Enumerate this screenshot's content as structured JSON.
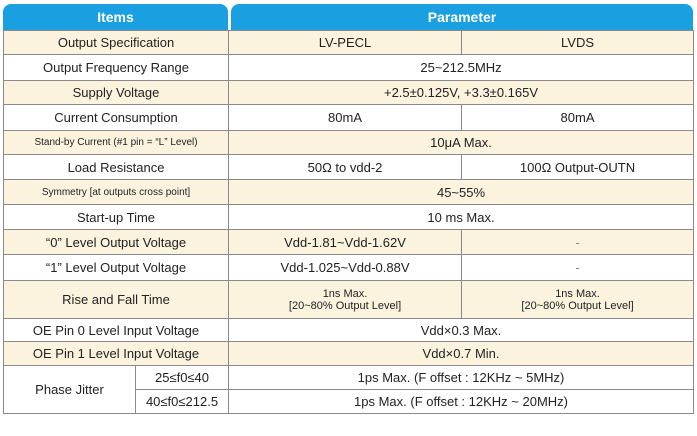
{
  "header": {
    "items": "Items",
    "parameter": "Parameter"
  },
  "rows": {
    "output_spec": {
      "label": "Output Specification",
      "a": "LV-PECL",
      "b": "LVDS"
    },
    "freq_range": {
      "label": "Output Frequency Range",
      "v": "25~212.5MHz"
    },
    "supply": {
      "label": "Supply Voltage",
      "v": "+2.5±0.125V, +3.3±0.165V"
    },
    "current": {
      "label": "Current Consumption",
      "a": "80mA",
      "b": "80mA"
    },
    "standby": {
      "label": "Stand-by Current (#1 pin = “L” Level)",
      "v": "10μA Max."
    },
    "load": {
      "label": "Load Resistance",
      "a": "50Ω to vdd-2",
      "b": "100Ω Output-OUTN"
    },
    "symmetry": {
      "label": "Symmetry [at outputs cross point]",
      "v": "45~55%"
    },
    "startup": {
      "label": "Start-up Time",
      "v": "10 ms Max."
    },
    "level0": {
      "label": "“0” Level Output Voltage",
      "a": "Vdd-1.81~Vdd-1.62V",
      "b": "-"
    },
    "level1": {
      "label": "“1” Level Output Voltage",
      "a": "Vdd-1.025~Vdd-0.88V",
      "b": "-"
    },
    "rise_fall": {
      "label": "Rise and Fall Time",
      "a1": "1ns Max.",
      "a2": "[20~80% Output Level]",
      "b1": "1ns Max.",
      "b2": "[20~80% Output Level]"
    },
    "oe0": {
      "label": "OE Pin 0 Level Input Voltage",
      "v": "Vdd×0.3 Max."
    },
    "oe1": {
      "label": "OE Pin 1 Level Input Voltage",
      "v": "Vdd×0.7 Min."
    },
    "jitter": {
      "label": "Phase Jitter",
      "r1_range": "25≤f0≤40",
      "r1_v": "1ps Max. (F offset : 12KHz ~ 5MHz)",
      "r2_range": "40≤f0≤212.5",
      "r2_v": "1ps Max. (F offset : 12KHz ~ 20MHz)"
    }
  }
}
